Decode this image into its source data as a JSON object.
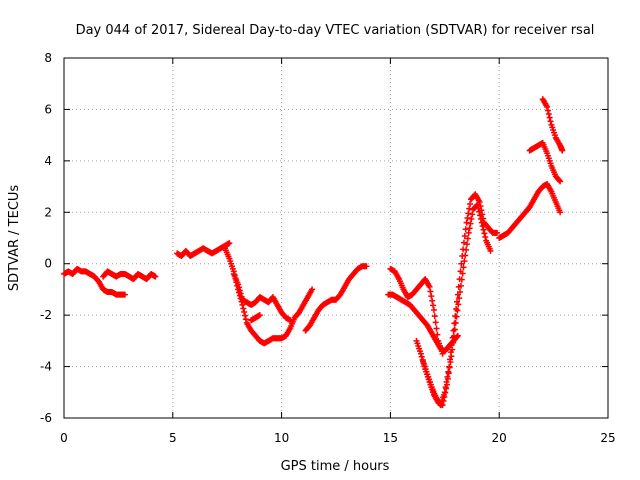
{
  "chart_data": {
    "type": "scatter",
    "title": "Day 044 of 2017, Sidereal Day-to-day VTEC variation (SDTVAR) for receiver rsal",
    "xlabel": "GPS time / hours",
    "ylabel": "SDTVAR / TECUs",
    "xlim": [
      0,
      25
    ],
    "ylim": [
      -6,
      8
    ],
    "xticks": [
      "0",
      "5",
      "10",
      "15",
      "20",
      "25"
    ],
    "yticks": [
      "-6",
      "-4",
      "-2",
      "0",
      "2",
      "4",
      "6",
      "8"
    ],
    "grid": true,
    "legend": "none",
    "marker": "plus",
    "color": "#ff0000",
    "series": [
      {
        "x": [
          0.0,
          0.2,
          0.4,
          0.6,
          0.8,
          1.0,
          1.2,
          1.4,
          1.6,
          1.8,
          2.0,
          2.2,
          2.4,
          2.6,
          2.8
        ],
        "y": [
          -0.4,
          -0.3,
          -0.4,
          -0.2,
          -0.3,
          -0.3,
          -0.4,
          -0.5,
          -0.7,
          -1.0,
          -1.1,
          -1.1,
          -1.2,
          -1.2,
          -1.2
        ]
      },
      {
        "x": [
          1.8,
          2.0,
          2.2,
          2.4,
          2.6,
          2.8,
          3.0,
          3.2,
          3.4,
          3.6,
          3.8,
          4.0,
          4.2
        ],
        "y": [
          -0.5,
          -0.3,
          -0.4,
          -0.5,
          -0.4,
          -0.4,
          -0.5,
          -0.6,
          -0.4,
          -0.5,
          -0.6,
          -0.4,
          -0.5
        ]
      },
      {
        "x": [
          5.2,
          5.4,
          5.6,
          5.8,
          6.0,
          6.2,
          6.4,
          6.6,
          6.8,
          7.0,
          7.2,
          7.4,
          7.6
        ],
        "y": [
          0.4,
          0.3,
          0.5,
          0.3,
          0.4,
          0.5,
          0.6,
          0.5,
          0.4,
          0.5,
          0.6,
          0.7,
          0.8
        ]
      },
      {
        "x": [
          7.4,
          7.6,
          7.8,
          8.0,
          8.2,
          8.4,
          8.6,
          8.8,
          9.0,
          9.2,
          9.4,
          9.6,
          9.8,
          10.0,
          10.2,
          10.4,
          10.6,
          10.8,
          11.0,
          11.2,
          11.4
        ],
        "y": [
          0.6,
          0.2,
          -0.3,
          -1.0,
          -1.6,
          -2.3,
          -2.6,
          -2.8,
          -3.0,
          -3.1,
          -3.0,
          -2.9,
          -2.9,
          -2.9,
          -2.8,
          -2.5,
          -2.1,
          -1.9,
          -1.6,
          -1.3,
          -1.0
        ]
      },
      {
        "x": [
          7.8,
          8.0,
          8.2,
          8.4,
          8.6,
          8.8,
          9.0,
          9.2,
          9.4,
          9.6,
          9.8,
          10.0,
          10.2,
          10.4
        ],
        "y": [
          -0.4,
          -0.8,
          -1.4,
          -1.5,
          -1.6,
          -1.5,
          -1.3,
          -1.4,
          -1.5,
          -1.3,
          -1.6,
          -1.9,
          -2.1,
          -2.2
        ]
      },
      {
        "x": [
          8.6,
          8.8,
          9.0
        ],
        "y": [
          -2.2,
          -2.1,
          -2.0
        ]
      },
      {
        "x": [
          11.1,
          11.3,
          11.5,
          11.7,
          11.9,
          12.1,
          12.3,
          12.5,
          12.7,
          12.9,
          13.1,
          13.3,
          13.5,
          13.7,
          13.9
        ],
        "y": [
          -2.6,
          -2.4,
          -2.1,
          -1.8,
          -1.6,
          -1.5,
          -1.4,
          -1.4,
          -1.2,
          -0.9,
          -0.6,
          -0.4,
          -0.2,
          -0.1,
          -0.1
        ]
      },
      {
        "x": [
          14.9,
          15.1,
          15.3,
          15.5,
          15.7,
          15.9,
          16.1,
          16.3,
          16.5,
          16.7,
          16.9,
          17.1,
          17.3,
          17.5,
          17.7,
          17.9,
          18.1
        ],
        "y": [
          -1.2,
          -1.2,
          -1.3,
          -1.4,
          -1.5,
          -1.6,
          -1.8,
          -2.0,
          -2.2,
          -2.4,
          -2.7,
          -3.0,
          -3.3,
          -3.4,
          -3.2,
          -3.0,
          -2.8
        ]
      },
      {
        "x": [
          15.0,
          15.2,
          15.4,
          15.6,
          15.8,
          16.0,
          16.2,
          16.4,
          16.6,
          16.8,
          17.0,
          17.2,
          17.4
        ],
        "y": [
          -0.2,
          -0.3,
          -0.6,
          -1.0,
          -1.3,
          -1.2,
          -1.0,
          -0.8,
          -0.6,
          -0.9,
          -1.8,
          -3.0,
          -3.5
        ]
      },
      {
        "x": [
          16.2,
          16.4,
          16.6,
          16.8,
          17.0,
          17.2,
          17.4,
          17.6,
          17.8,
          18.0,
          18.2,
          18.4,
          18.6,
          18.8,
          19.0,
          19.2,
          19.4,
          19.6
        ],
        "y": [
          -3.0,
          -3.5,
          -4.1,
          -4.6,
          -5.1,
          -5.4,
          -5.5,
          -4.7,
          -3.6,
          -2.3,
          -1.1,
          0.1,
          1.2,
          2.1,
          2.3,
          1.6,
          0.9,
          0.5
        ]
      },
      {
        "x": [
          16.5,
          16.7,
          16.9,
          17.1,
          17.3,
          17.5,
          17.7,
          17.9,
          18.1,
          18.3,
          18.5,
          18.7,
          18.9,
          19.1,
          19.3,
          19.5,
          19.7,
          19.9
        ],
        "y": [
          -3.8,
          -4.3,
          -4.8,
          -5.2,
          -5.5,
          -5.0,
          -4.0,
          -2.6,
          -1.2,
          0.3,
          1.6,
          2.5,
          2.7,
          2.4,
          1.6,
          1.4,
          1.2,
          1.2
        ]
      },
      {
        "x": [
          20.0,
          20.2,
          20.4,
          20.6,
          20.8,
          21.0,
          21.2,
          21.4,
          21.6,
          21.8,
          22.0,
          22.2,
          22.4,
          22.6,
          22.8
        ],
        "y": [
          1.0,
          1.1,
          1.2,
          1.4,
          1.6,
          1.8,
          2.0,
          2.2,
          2.5,
          2.8,
          3.0,
          3.1,
          2.8,
          2.4,
          2.0
        ]
      },
      {
        "x": [
          21.4,
          21.6,
          21.8,
          22.0,
          22.2,
          22.4,
          22.6,
          22.8
        ],
        "y": [
          4.4,
          4.5,
          4.6,
          4.7,
          4.3,
          3.8,
          3.4,
          3.2
        ]
      },
      {
        "x": [
          22.0,
          22.2,
          22.4,
          22.6,
          22.8,
          22.9
        ],
        "y": [
          6.4,
          6.1,
          5.4,
          4.9,
          4.6,
          4.4
        ]
      }
    ]
  }
}
